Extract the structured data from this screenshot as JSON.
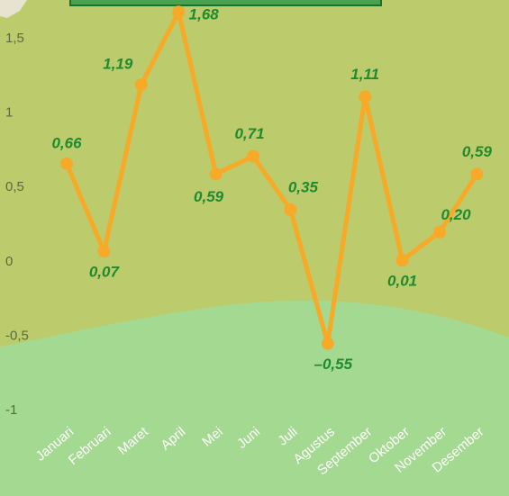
{
  "chart_data": {
    "type": "line",
    "categories": [
      "Januari",
      "Februari",
      "Maret",
      "April",
      "Mei",
      "Juni",
      "Juli",
      "Agustus",
      "September",
      "Oktober",
      "November",
      "Desember"
    ],
    "values": [
      0.66,
      0.07,
      1.19,
      1.68,
      0.59,
      0.71,
      0.35,
      -0.55,
      1.11,
      0.01,
      0.2,
      0.59
    ],
    "value_labels": [
      "0,66",
      "0,07",
      "1,19",
      "1,68",
      "0,59",
      "0,71",
      "0,35",
      "–0,55",
      "1,11",
      "0,01",
      "0,20",
      "0,59"
    ],
    "color": "#f7a928",
    "ylim": [
      -1,
      1.5
    ],
    "yticks": [
      {
        "value": -1,
        "label": "-1"
      },
      {
        "value": -0.5,
        "label": "-0,5"
      },
      0,
      {
        "value": 0.5,
        "label": "0,5"
      },
      1,
      {
        "value": 1.5,
        "label": "1,5"
      }
    ]
  }
}
